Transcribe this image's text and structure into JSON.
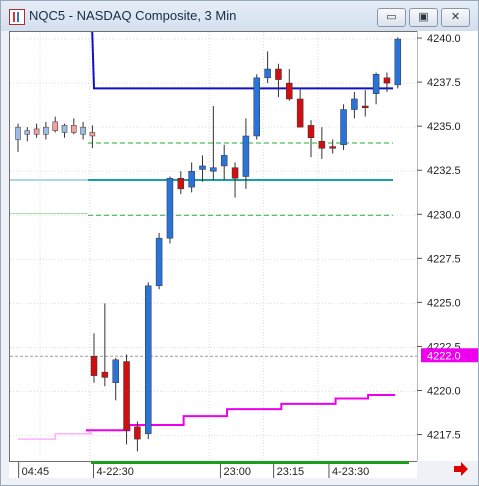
{
  "window": {
    "title": "NQC5 - NASDAQ Composite, 3 Min",
    "buttons": {
      "minimize": "▭",
      "maximize": "▣",
      "close": "✕"
    },
    "arrow_color": "#e00000"
  },
  "chart_data": {
    "type": "candlestick",
    "y_ticks": [
      "4240.0",
      "4237.5",
      "4235.0",
      "4232.5",
      "4230.0",
      "4227.5",
      "4225.0",
      "4222.5",
      "4220.0",
      "4217.5"
    ],
    "y_tick_values": [
      4240.0,
      4237.5,
      4235.0,
      4232.5,
      4230.0,
      4227.5,
      4225.0,
      4222.5,
      4220.0,
      4217.5
    ],
    "ylim": [
      4216.0,
      4240.4
    ],
    "x_ticks": [
      "04:45",
      "4-22:30",
      "23:00",
      "23:15",
      "4-23:30"
    ],
    "price_label": "4222.0",
    "price_value": 4222.0,
    "colors": {
      "up": "#2a73d8",
      "down": "#d01010",
      "outline": "#202020",
      "blue_level": "#1010c8",
      "teal": "#18a0a8",
      "dashed": "#20b030",
      "magenta": "#ee00ee",
      "pink": "#ffb0ff",
      "faded_up": "#9dbde6",
      "faded_down": "#f0a0a0"
    },
    "early_candles": [
      {
        "o": 4234.3,
        "h": 4235.2,
        "l": 4233.6,
        "c": 4235.0
      },
      {
        "o": 4234.6,
        "h": 4235.0,
        "l": 4234.2,
        "c": 4234.8
      },
      {
        "o": 4234.9,
        "h": 4235.2,
        "l": 4234.4,
        "c": 4234.6
      },
      {
        "o": 4234.6,
        "h": 4235.3,
        "l": 4234.3,
        "c": 4235.0
      },
      {
        "o": 4235.3,
        "h": 4235.6,
        "l": 4234.7,
        "c": 4234.8
      },
      {
        "o": 4234.7,
        "h": 4235.2,
        "l": 4234.4,
        "c": 4235.1
      },
      {
        "o": 4235.1,
        "h": 4235.5,
        "l": 4234.6,
        "c": 4234.7
      },
      {
        "o": 4234.6,
        "h": 4235.3,
        "l": 4234.3,
        "c": 4235.0
      },
      {
        "o": 4234.7,
        "h": 4235.1,
        "l": 4233.8,
        "c": 4234.5
      }
    ],
    "candles": [
      {
        "o": 4222.0,
        "h": 4223.3,
        "l": 4220.5,
        "c": 4220.9
      },
      {
        "o": 4221.1,
        "h": 4225.0,
        "l": 4220.3,
        "c": 4220.8
      },
      {
        "o": 4220.5,
        "h": 4221.9,
        "l": 4219.5,
        "c": 4221.8
      },
      {
        "o": 4221.7,
        "h": 4222.1,
        "l": 4217.0,
        "c": 4217.8
      },
      {
        "o": 4218.0,
        "h": 4218.3,
        "l": 4216.6,
        "c": 4217.3
      },
      {
        "o": 4217.6,
        "h": 4226.2,
        "l": 4217.3,
        "c": 4226.0
      },
      {
        "o": 4226.0,
        "h": 4229.0,
        "l": 4225.8,
        "c": 4228.7
      },
      {
        "o": 4228.7,
        "h": 4232.2,
        "l": 4228.4,
        "c": 4232.1
      },
      {
        "o": 4232.1,
        "h": 4232.5,
        "l": 4231.2,
        "c": 4231.5
      },
      {
        "o": 4231.6,
        "h": 4233.0,
        "l": 4231.3,
        "c": 4232.5
      },
      {
        "o": 4232.6,
        "h": 4233.4,
        "l": 4231.9,
        "c": 4232.8
      },
      {
        "o": 4232.5,
        "h": 4236.2,
        "l": 4232.0,
        "c": 4232.7
      },
      {
        "o": 4232.8,
        "h": 4234.0,
        "l": 4232.0,
        "c": 4233.4
      },
      {
        "o": 4232.7,
        "h": 4233.0,
        "l": 4231.0,
        "c": 4232.1
      },
      {
        "o": 4232.2,
        "h": 4235.5,
        "l": 4231.5,
        "c": 4234.5
      },
      {
        "o": 4234.5,
        "h": 4238.0,
        "l": 4234.3,
        "c": 4237.8
      },
      {
        "o": 4237.8,
        "h": 4239.3,
        "l": 4237.5,
        "c": 4238.3
      },
      {
        "o": 4238.3,
        "h": 4238.6,
        "l": 4236.7,
        "c": 4237.7
      },
      {
        "o": 4237.5,
        "h": 4238.3,
        "l": 4236.5,
        "c": 4236.6
      },
      {
        "o": 4236.6,
        "h": 4237.2,
        "l": 4235.0,
        "c": 4235.0
      },
      {
        "o": 4235.1,
        "h": 4235.4,
        "l": 4233.3,
        "c": 4234.4
      },
      {
        "o": 4234.2,
        "h": 4235.0,
        "l": 4233.2,
        "c": 4233.8
      },
      {
        "o": 4233.9,
        "h": 4234.3,
        "l": 4233.5,
        "c": 4233.8
      },
      {
        "o": 4234.0,
        "h": 4236.3,
        "l": 4233.7,
        "c": 4236.0
      },
      {
        "o": 4236.0,
        "h": 4237.0,
        "l": 4235.5,
        "c": 4236.6
      },
      {
        "o": 4236.2,
        "h": 4237.1,
        "l": 4235.6,
        "c": 4236.1
      },
      {
        "o": 4236.9,
        "h": 4238.1,
        "l": 4236.3,
        "c": 4238.0
      },
      {
        "o": 4237.8,
        "h": 4238.1,
        "l": 4237.0,
        "c": 4237.5
      },
      {
        "o": 4237.4,
        "h": 4240.1,
        "l": 4237.2,
        "c": 4240.0
      }
    ],
    "levels": {
      "blue_start": 4240.5,
      "blue": 4237.2,
      "dashed_upper": 4234.1,
      "teal": 4232.0,
      "teal_faded": 4232.0,
      "dashed_lower": 4230.0,
      "faded_green": 4230.1,
      "gray_dashed": 4222.0
    },
    "magenta_steps": [
      {
        "from": 0,
        "to": 4,
        "y": 4217.8
      },
      {
        "from": 4,
        "to": 9,
        "y": 4218.1
      },
      {
        "from": 9,
        "to": 13,
        "y": 4218.6
      },
      {
        "from": 13,
        "to": 18,
        "y": 4219.0
      },
      {
        "from": 18,
        "to": 23,
        "y": 4219.3
      },
      {
        "from": 23,
        "to": 26,
        "y": 4219.6
      },
      {
        "from": 26,
        "to": 28.5,
        "y": 4219.8
      }
    ],
    "pink_steps": [
      {
        "from": 0,
        "to": 4,
        "y": 4217.3
      },
      {
        "from": 4,
        "to": 8,
        "y": 4217.6
      }
    ]
  }
}
